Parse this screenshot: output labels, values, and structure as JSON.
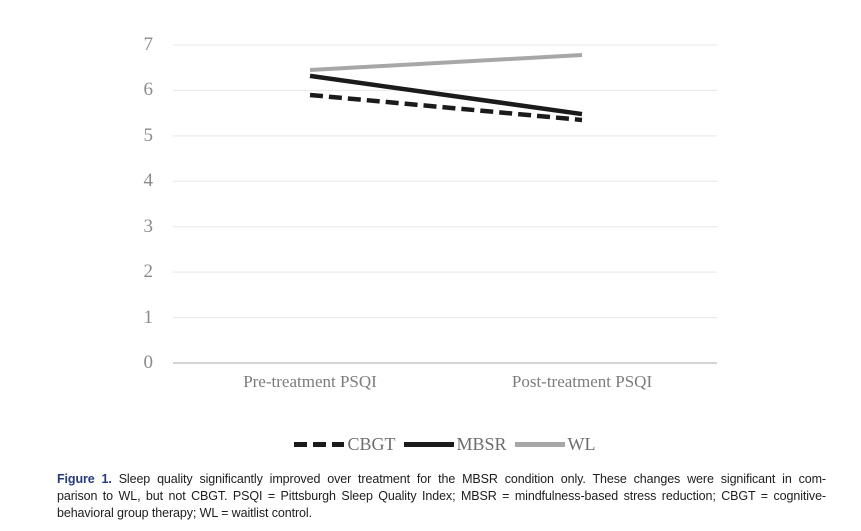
{
  "figure": {
    "caption_label": "Figure 1.",
    "caption_label_color": "#273b7a",
    "caption_lines": [
      "Sleep quality significantly improved over treatment for the MBSR condition only. These changes were significant in com-",
      "parison to WL, but not CBGT. PSQI = Pittsburgh Sleep Quality Index; MBSR = mindfulness-based stress reduction; CBGT = cognitive-",
      "behavioral group therapy; WL = waitlist control."
    ]
  },
  "chart_data": {
    "type": "line",
    "title": "",
    "xlabel": "",
    "ylabel": "",
    "categories": [
      "Pre-treatment PSQI",
      "Post-treatment PSQI"
    ],
    "series": [
      {
        "name": "CBGT",
        "values": [
          5.9,
          5.35
        ],
        "color": "#1b1b1b",
        "line_style": "dashed"
      },
      {
        "name": "MBSR",
        "values": [
          6.32,
          5.48
        ],
        "color": "#1b1b1b",
        "line_style": "solid"
      },
      {
        "name": "WL",
        "values": [
          6.45,
          6.78
        ],
        "color": "#a7a7a7",
        "line_style": "solid"
      }
    ],
    "ylim": [
      0,
      7
    ],
    "yticks": [
      0,
      1,
      2,
      3,
      4,
      5,
      6,
      7
    ],
    "grid": true,
    "gridline_color": "#e7e7e7",
    "axis_line_color": "#d4d4d4",
    "legend_position": "bottom"
  }
}
